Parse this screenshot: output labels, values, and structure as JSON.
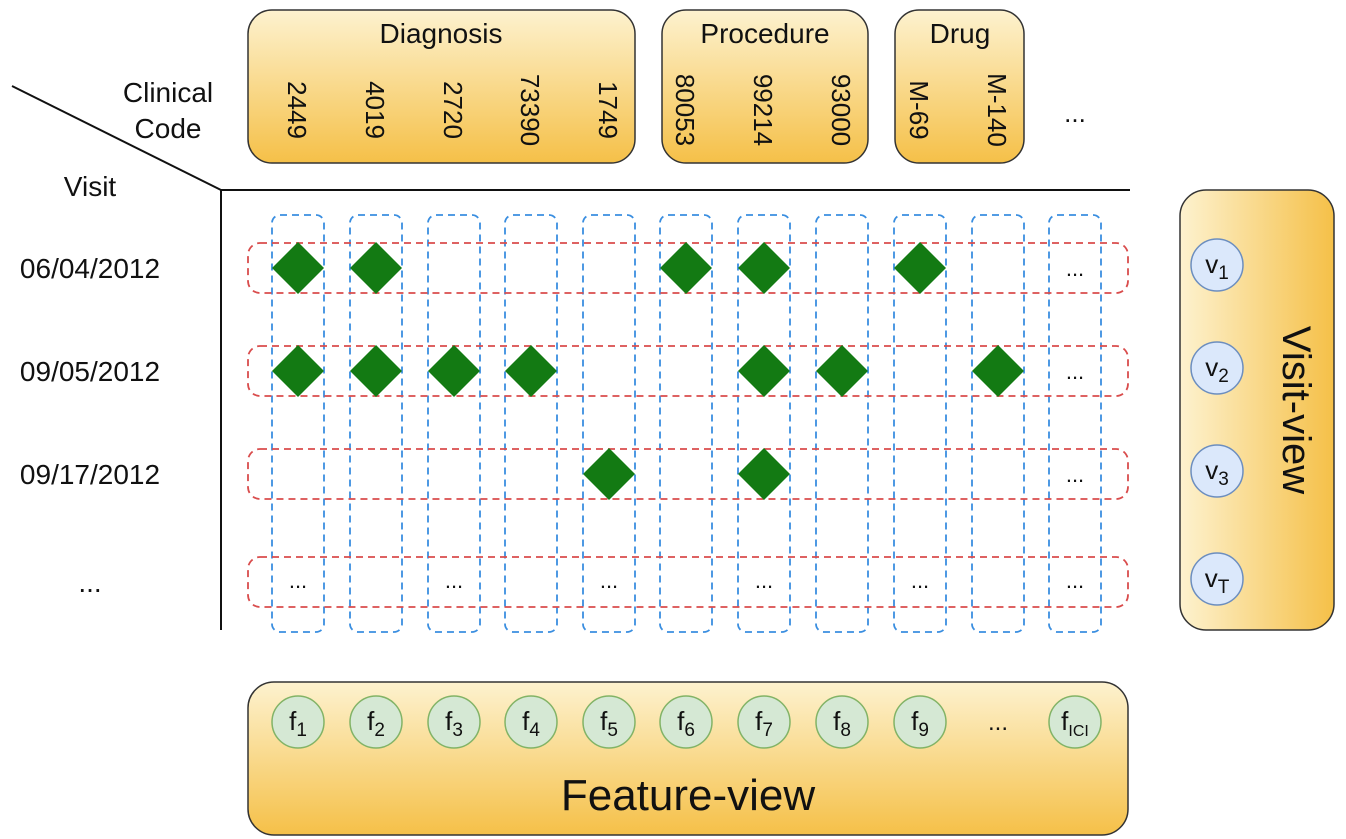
{
  "corner": {
    "top_label_line1": "Clinical",
    "top_label_line2": "Code",
    "side_label": "Visit"
  },
  "groups": [
    {
      "title": "Diagnosis",
      "codes": [
        "2449",
        "4019",
        "2720",
        "73390",
        "1749"
      ]
    },
    {
      "title": "Procedure",
      "codes": [
        "80053",
        "99214",
        "93000"
      ]
    },
    {
      "title": "Drug",
      "codes": [
        "M-69",
        "M-140"
      ]
    }
  ],
  "code_more": "...",
  "visits": [
    {
      "date": "06/04/2012",
      "marks": [
        0,
        1,
        5,
        6,
        8
      ]
    },
    {
      "date": "09/05/2012",
      "marks": [
        0,
        1,
        2,
        3,
        6,
        7,
        9
      ]
    },
    {
      "date": "09/17/2012",
      "marks": [
        4,
        6
      ]
    },
    {
      "date": "...",
      "marks": []
    }
  ],
  "cell_more": "...",
  "last_row_dots_columns": [
    0,
    2,
    4,
    6,
    8,
    10
  ],
  "visit_view": {
    "title": "Visit-view",
    "nodes": [
      {
        "base": "v",
        "sub": "1"
      },
      {
        "base": "v",
        "sub": "2"
      },
      {
        "base": "v",
        "sub": "3"
      },
      {
        "base": "v",
        "sub": "T"
      }
    ]
  },
  "feature_view": {
    "title": "Feature-view",
    "nodes": [
      {
        "base": "f",
        "sub": "1"
      },
      {
        "base": "f",
        "sub": "2"
      },
      {
        "base": "f",
        "sub": "3"
      },
      {
        "base": "f",
        "sub": "4"
      },
      {
        "base": "f",
        "sub": "5"
      },
      {
        "base": "f",
        "sub": "6"
      },
      {
        "base": "f",
        "sub": "7"
      },
      {
        "base": "f",
        "sub": "8"
      },
      {
        "base": "f",
        "sub": "9"
      }
    ],
    "more": "...",
    "last_node": {
      "base": "f",
      "sub": "ICI"
    }
  },
  "colors": {
    "panel_top": "#fdf2cf",
    "panel_bottom": "#f5c048",
    "panel_stroke": "#333333",
    "column_dash": "#3a8ee0",
    "row_dash": "#d94c4c",
    "diamond": "#137a13",
    "visit_node_fill": "#dbe8fb",
    "visit_node_stroke": "#6c8ebf",
    "feature_node_fill": "#d5e8d4",
    "feature_node_stroke": "#82b366"
  }
}
